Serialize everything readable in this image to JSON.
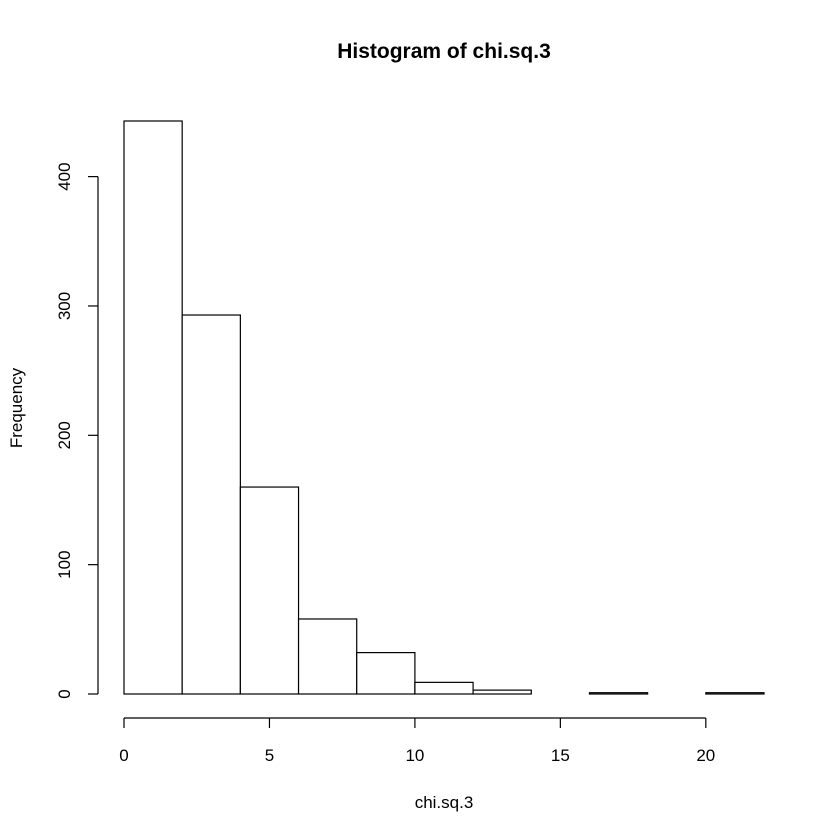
{
  "chart_data": {
    "type": "bar",
    "title": "Histogram of chi.sq.3",
    "xlabel": "chi.sq.3",
    "ylabel": "Frequency",
    "bins": [
      {
        "x0": 0,
        "x1": 2,
        "count": 443
      },
      {
        "x0": 2,
        "x1": 4,
        "count": 293
      },
      {
        "x0": 4,
        "x1": 6,
        "count": 160
      },
      {
        "x0": 6,
        "x1": 8,
        "count": 58
      },
      {
        "x0": 8,
        "x1": 10,
        "count": 32
      },
      {
        "x0": 10,
        "x1": 12,
        "count": 9
      },
      {
        "x0": 12,
        "x1": 14,
        "count": 3
      },
      {
        "x0": 14,
        "x1": 16,
        "count": 0
      },
      {
        "x0": 16,
        "x1": 18,
        "count": 1
      },
      {
        "x0": 18,
        "x1": 20,
        "count": 0
      },
      {
        "x0": 20,
        "x1": 22,
        "count": 1
      }
    ],
    "xlim": [
      0,
      22
    ],
    "ylim": [
      0,
      443
    ],
    "x_ticks": [
      0,
      5,
      10,
      15,
      20
    ],
    "y_ticks": [
      0,
      100,
      200,
      300,
      400
    ],
    "grid": false,
    "legend": "none"
  },
  "colors": {
    "bar_fill": "#ffffff",
    "bar_stroke": "#000000",
    "background": "#ffffff"
  }
}
